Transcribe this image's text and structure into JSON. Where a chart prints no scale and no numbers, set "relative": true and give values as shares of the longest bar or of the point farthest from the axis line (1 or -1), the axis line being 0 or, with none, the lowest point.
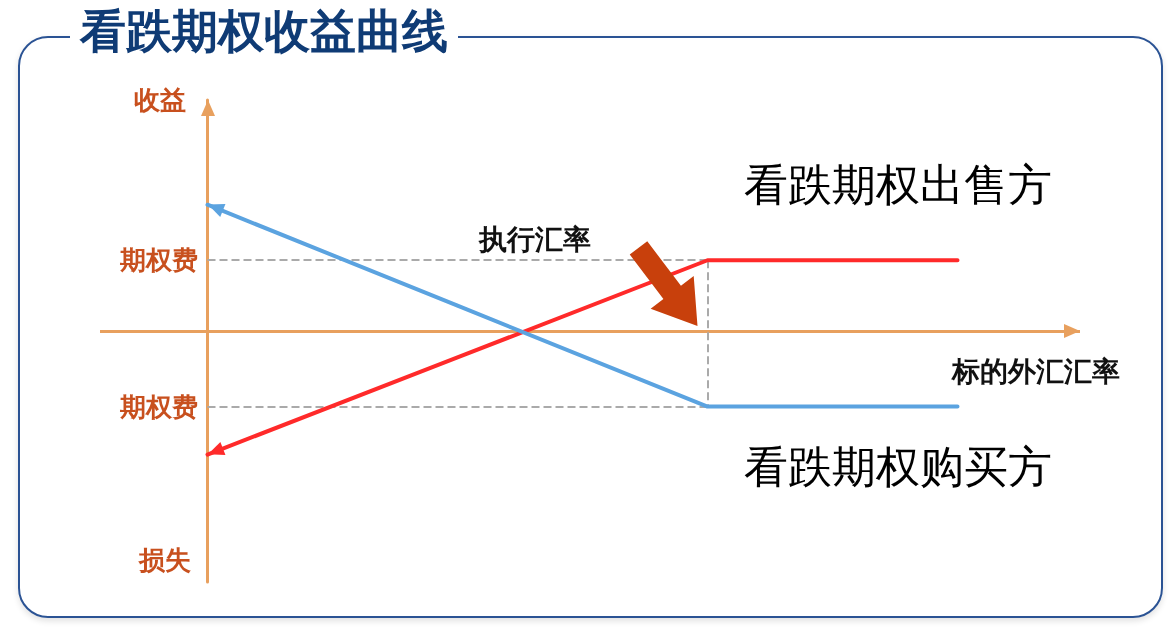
{
  "chart_data": {
    "type": "line",
    "title": "看跌期权收益曲线",
    "xlabel": "标的外汇汇率",
    "ylabel": "收益",
    "annotations": [
      "执行汇率",
      "损失"
    ],
    "relative": true,
    "legend": false,
    "categories": [
      null,
      null,
      null,
      null
    ],
    "series": [
      {
        "name": "看跌期权出售方",
        "color": "#ff2a2a",
        "values": [
          -0.98,
          -0.21,
          0.56,
          0.56
        ]
      },
      {
        "name": "看跌期权购买方",
        "color": "#5ba3e0",
        "values": [
          1,
          0.2,
          -0.6,
          -0.6
        ]
      }
    ],
    "ref_lines": [
      {
        "axis": "y",
        "value": 0,
        "color": "#e8a05e",
        "line_style": "solid"
      },
      {
        "axis": "y",
        "value": 0.56,
        "label": "期权费",
        "color": "#aaaaaa",
        "line_style": "dashed"
      },
      {
        "axis": "y",
        "value": -0.6,
        "label": "期权费",
        "color": "#aaaaaa",
        "line_style": "dashed"
      }
    ]
  }
}
